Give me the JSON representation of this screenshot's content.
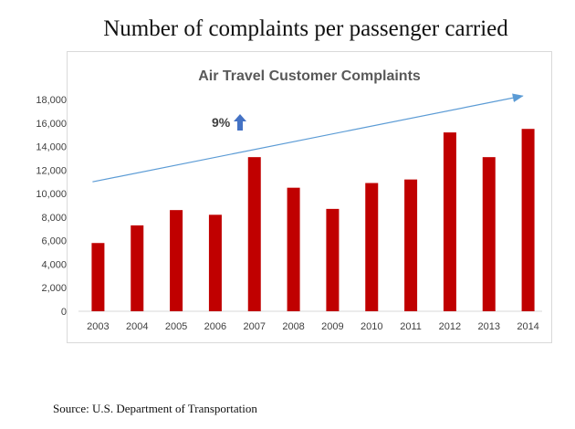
{
  "page": {
    "title": "Number of complaints per passenger carried",
    "source": "Source: U.S. Department of Transportation"
  },
  "annotation": {
    "label": "9%",
    "arrow_icon": "up-arrow-icon"
  },
  "colors": {
    "bar": "#c00000",
    "trend": "#5b9bd5",
    "arrow": "#4472c4",
    "grid": "#d9d9d9"
  },
  "chart_data": {
    "type": "bar",
    "title": "Air Travel Customer Complaints",
    "xlabel": "",
    "ylabel": "",
    "categories": [
      "2003",
      "2004",
      "2005",
      "2006",
      "2007",
      "2008",
      "2009",
      "2010",
      "2011",
      "2012",
      "2013",
      "2014"
    ],
    "values": [
      5800,
      7300,
      8600,
      8200,
      13100,
      10500,
      8700,
      10900,
      11200,
      15200,
      13100,
      15500
    ],
    "ylim": [
      0,
      18000
    ],
    "yticks": [
      "0",
      "2,000",
      "4,000",
      "6,000",
      "8,000",
      "10,000",
      "12,000",
      "14,000",
      "16,000",
      "18,000"
    ],
    "grid": false,
    "legend": "none",
    "trend_line": {
      "start": 11000,
      "end": 18300
    }
  }
}
